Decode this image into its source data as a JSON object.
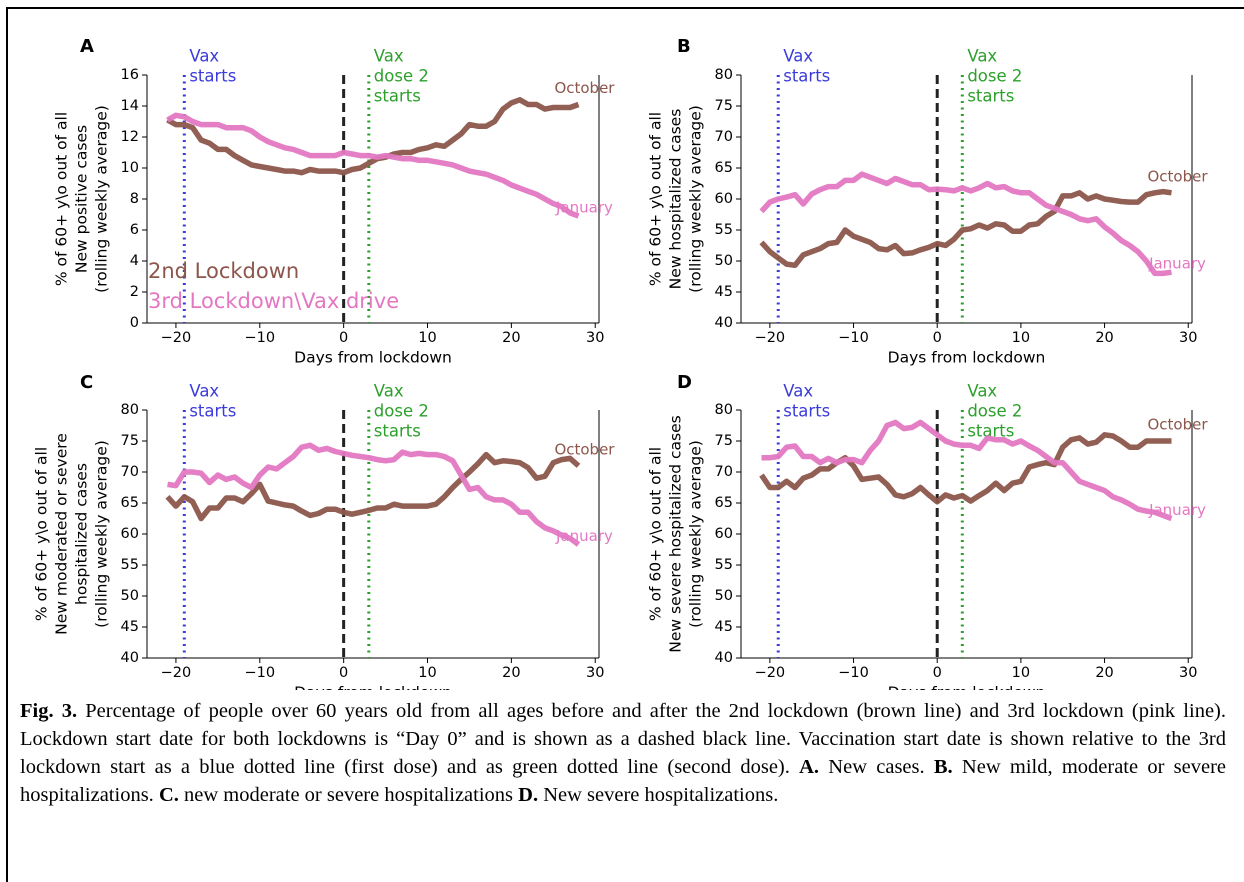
{
  "chart_data": [
    {
      "type": "line",
      "panel_label": "A",
      "xlabel": "Days from lockdown",
      "ylabel": [
        "% of 60+ y\\o out of all",
        "New positive cases",
        "(rolling weekly average)"
      ],
      "x": [
        -21,
        -20,
        -19,
        -18,
        -17,
        -16,
        -15,
        -14,
        -13,
        -12,
        -11,
        -10,
        -9,
        -8,
        -7,
        -6,
        -5,
        -4,
        -3,
        -2,
        -1,
        0,
        1,
        2,
        3,
        4,
        5,
        6,
        7,
        8,
        9,
        10,
        11,
        12,
        13,
        14,
        15,
        16,
        17,
        18,
        19,
        20,
        21,
        22,
        23,
        24,
        25,
        26,
        27,
        28
      ],
      "xlim": [
        -23.45,
        30.45
      ],
      "xticks": [
        {
          "value": -20,
          "label": "−20"
        },
        {
          "value": -10,
          "label": "−10"
        },
        0,
        10,
        20,
        30
      ],
      "ylim": [
        0,
        16
      ],
      "yticks": [
        0,
        2,
        4,
        6,
        8,
        10,
        12,
        14,
        16
      ],
      "series": [
        {
          "name": "2nd Lockdown",
          "end_label": "October",
          "color": "#8c564b",
          "values": [
            13.1,
            12.8,
            12.8,
            12.6,
            11.8,
            11.6,
            11.2,
            11.2,
            10.8,
            10.5,
            10.2,
            10.1,
            10.0,
            9.9,
            9.8,
            9.8,
            9.7,
            9.9,
            9.8,
            9.8,
            9.8,
            9.7,
            9.9,
            10.0,
            10.3,
            10.6,
            10.7,
            10.9,
            11.0,
            11.0,
            11.2,
            11.3,
            11.5,
            11.4,
            11.8,
            12.2,
            12.8,
            12.7,
            12.7,
            13.0,
            13.8,
            14.2,
            14.4,
            14.1,
            14.1,
            13.8,
            13.9,
            13.9,
            13.9,
            14.1
          ]
        },
        {
          "name": "3rd Lockdown\\Vax drive",
          "end_label": "January",
          "color": "#e377c2",
          "values": [
            13.1,
            13.4,
            13.3,
            13.0,
            12.8,
            12.8,
            12.8,
            12.6,
            12.6,
            12.6,
            12.4,
            12.0,
            11.7,
            11.5,
            11.3,
            11.2,
            11.0,
            10.8,
            10.8,
            10.8,
            10.8,
            11.0,
            10.9,
            10.8,
            10.8,
            10.7,
            10.8,
            10.7,
            10.6,
            10.6,
            10.5,
            10.5,
            10.4,
            10.3,
            10.2,
            10.0,
            9.8,
            9.7,
            9.6,
            9.4,
            9.2,
            8.9,
            8.7,
            8.5,
            8.3,
            8.0,
            7.7,
            7.5,
            7.1,
            6.9
          ]
        }
      ],
      "legend": "lower left",
      "vlines": [
        {
          "x": -19,
          "color": "#3b3bdb",
          "style": "dotted",
          "label": [
            "Vax",
            "starts"
          ]
        },
        {
          "x": 0,
          "color": "#222222",
          "style": "dashed"
        },
        {
          "x": 3,
          "color": "#2ca02c",
          "style": "dotted",
          "label": [
            "Vax",
            "dose 2",
            "starts"
          ]
        }
      ]
    },
    {
      "type": "line",
      "panel_label": "B",
      "xlabel": "Days from lockdown",
      "ylabel": [
        "% of 60+ y\\o out of all",
        "New hospitalized cases",
        "(rolling weekly average)"
      ],
      "x": [
        -21,
        -20,
        -19,
        -18,
        -17,
        -16,
        -15,
        -14,
        -13,
        -12,
        -11,
        -10,
        -9,
        -8,
        -7,
        -6,
        -5,
        -4,
        -3,
        -2,
        -1,
        0,
        1,
        2,
        3,
        4,
        5,
        6,
        7,
        8,
        9,
        10,
        11,
        12,
        13,
        14,
        15,
        16,
        17,
        18,
        19,
        20,
        21,
        22,
        23,
        24,
        25,
        26,
        27,
        28
      ],
      "xlim": [
        -23.45,
        30.45
      ],
      "xticks": [
        {
          "value": -20,
          "label": "−20"
        },
        {
          "value": -10,
          "label": "−10"
        },
        0,
        10,
        20,
        30
      ],
      "ylim": [
        40,
        80
      ],
      "yticks": [
        40,
        45,
        50,
        55,
        60,
        65,
        70,
        75,
        80
      ],
      "series": [
        {
          "end_label": "October",
          "color": "#8c564b",
          "values": [
            53,
            51.5,
            50.5,
            49.5,
            49.3,
            51,
            51.5,
            52,
            52.8,
            53,
            55,
            54,
            53.5,
            53,
            52,
            51.8,
            52.5,
            51.2,
            51.3,
            51.8,
            52.2,
            52.8,
            52.5,
            53.5,
            55,
            55.2,
            55.8,
            55.3,
            56,
            55.8,
            54.8,
            54.8,
            55.8,
            56,
            57.2,
            58,
            60.5,
            60.5,
            61,
            60,
            60.5,
            60,
            59.8,
            59.6,
            59.5,
            59.5,
            60.7,
            61,
            61.2,
            61
          ]
        },
        {
          "end_label": "January",
          "color": "#e377c2",
          "values": [
            58,
            59.5,
            60,
            60.3,
            60.7,
            59.2,
            60.8,
            61.5,
            62,
            62,
            63,
            63,
            64,
            63.5,
            63,
            62.5,
            63.3,
            62.8,
            62.3,
            62.3,
            61.5,
            61.6,
            61.5,
            61.3,
            61.8,
            61.3,
            61.8,
            62.5,
            61.8,
            62,
            61.3,
            61,
            61,
            60,
            59,
            58.5,
            58,
            57.5,
            56.8,
            56.5,
            56.8,
            55.5,
            54.5,
            53.3,
            52.5,
            51.5,
            50,
            48,
            48,
            48.2
          ]
        }
      ],
      "vlines": [
        {
          "x": -19,
          "color": "#3b3bdb",
          "style": "dotted",
          "label": [
            "Vax",
            "starts"
          ]
        },
        {
          "x": 0,
          "color": "#222222",
          "style": "dashed"
        },
        {
          "x": 3,
          "color": "#2ca02c",
          "style": "dotted",
          "label": [
            "Vax",
            "dose 2",
            "starts"
          ]
        }
      ]
    },
    {
      "type": "line",
      "panel_label": "C",
      "xlabel": "Days from lockdown",
      "ylabel": [
        "% of 60+ y\\o out of all",
        "New moderated or severe",
        "hospitalized cases",
        "(rolling weekly average)"
      ],
      "x": [
        -21,
        -20,
        -19,
        -18,
        -17,
        -16,
        -15,
        -14,
        -13,
        -12,
        -11,
        -10,
        -9,
        -8,
        -7,
        -6,
        -5,
        -4,
        -3,
        -2,
        -1,
        0,
        1,
        2,
        3,
        4,
        5,
        6,
        7,
        8,
        9,
        10,
        11,
        12,
        13,
        14,
        15,
        16,
        17,
        18,
        19,
        20,
        21,
        22,
        23,
        24,
        25,
        26,
        27,
        28
      ],
      "xlim": [
        -23.45,
        30.45
      ],
      "xticks": [
        {
          "value": -20,
          "label": "−20"
        },
        {
          "value": -10,
          "label": "−10"
        },
        0,
        10,
        20,
        30
      ],
      "ylim": [
        40,
        80
      ],
      "yticks": [
        40,
        45,
        50,
        55,
        60,
        65,
        70,
        75,
        80
      ],
      "series": [
        {
          "end_label": "October",
          "color": "#8c564b",
          "values": [
            66,
            64.5,
            66,
            65.2,
            62.5,
            64.2,
            64.2,
            65.8,
            65.8,
            65.2,
            66.5,
            68,
            65.3,
            65,
            64.7,
            64.5,
            63.7,
            63,
            63.3,
            64,
            64,
            63.5,
            63.2,
            63.5,
            63.8,
            64.2,
            64.2,
            64.8,
            64.5,
            64.5,
            64.5,
            64.5,
            64.8,
            66,
            67.5,
            68.8,
            70,
            71.3,
            72.8,
            71.5,
            71.8,
            71.7,
            71.5,
            70.7,
            69,
            69.3,
            71.5,
            72,
            72.2,
            71
          ]
        },
        {
          "end_label": "January",
          "color": "#e377c2",
          "values": [
            68,
            67.8,
            70,
            70,
            69.8,
            68.3,
            69.5,
            68.8,
            69.2,
            68.2,
            67.5,
            69.5,
            70.8,
            70.5,
            71.5,
            72.5,
            74,
            74.3,
            73.5,
            73.8,
            73.3,
            73,
            72.7,
            72.5,
            72.3,
            72,
            71.8,
            72,
            73.2,
            72.8,
            73,
            72.8,
            72.8,
            72.5,
            71.8,
            69.5,
            67.2,
            67.5,
            66,
            65.5,
            65.5,
            64.8,
            63.5,
            63.5,
            62,
            61,
            60.5,
            59.8,
            59.3,
            58.3
          ]
        }
      ],
      "vlines": [
        {
          "x": -19,
          "color": "#3b3bdb",
          "style": "dotted",
          "label": [
            "Vax",
            "starts"
          ]
        },
        {
          "x": 0,
          "color": "#222222",
          "style": "dashed"
        },
        {
          "x": 3,
          "color": "#2ca02c",
          "style": "dotted",
          "label": [
            "Vax",
            "dose 2",
            "starts"
          ]
        }
      ]
    },
    {
      "type": "line",
      "panel_label": "D",
      "xlabel": "Days from lockdown",
      "ylabel": [
        "% of 60+ y\\o out of all",
        "New severe hospitalized cases",
        "(rolling weekly average)"
      ],
      "x": [
        -21,
        -20,
        -19,
        -18,
        -17,
        -16,
        -15,
        -14,
        -13,
        -12,
        -11,
        -10,
        -9,
        -8,
        -7,
        -6,
        -5,
        -4,
        -3,
        -2,
        -1,
        0,
        1,
        2,
        3,
        4,
        5,
        6,
        7,
        8,
        9,
        10,
        11,
        12,
        13,
        14,
        15,
        16,
        17,
        18,
        19,
        20,
        21,
        22,
        23,
        24,
        25,
        26,
        27,
        28
      ],
      "xlim": [
        -23.45,
        30.45
      ],
      "xticks": [
        {
          "value": -20,
          "label": "−20"
        },
        {
          "value": -10,
          "label": "−10"
        },
        0,
        10,
        20,
        30
      ],
      "ylim": [
        40,
        80
      ],
      "yticks": [
        40,
        45,
        50,
        55,
        60,
        65,
        70,
        75,
        80
      ],
      "series": [
        {
          "end_label": "October",
          "color": "#8c564b",
          "values": [
            69.5,
            67.5,
            67.5,
            68.5,
            67.5,
            69,
            69.5,
            70.5,
            70.5,
            71.5,
            72.3,
            71,
            68.8,
            69,
            69.2,
            68,
            66.3,
            66,
            66.5,
            67.5,
            66.3,
            65.2,
            66.3,
            65.8,
            66.2,
            65.3,
            66.2,
            67,
            68.2,
            67,
            68.2,
            68.5,
            70.8,
            71.2,
            71.5,
            71.2,
            74,
            75.2,
            75.5,
            74.5,
            74.8,
            76,
            75.8,
            75,
            74,
            74,
            75,
            75,
            75,
            75
          ]
        },
        {
          "end_label": "January",
          "color": "#e377c2",
          "values": [
            72.3,
            72.3,
            72.5,
            74,
            74.2,
            72.5,
            72.5,
            71.5,
            72.2,
            71.5,
            72,
            72,
            71.5,
            73.5,
            75,
            77.5,
            78,
            77,
            77.2,
            78,
            77,
            76,
            75,
            74.5,
            74.3,
            74.3,
            73.8,
            75.5,
            75.2,
            75.2,
            74.5,
            75,
            74.2,
            73.5,
            72.5,
            71.5,
            71.5,
            70,
            68.5,
            68,
            67.5,
            67,
            66,
            65.5,
            64.8,
            64,
            63.7,
            63.5,
            63,
            62.5
          ]
        }
      ],
      "vlines": [
        {
          "x": -19,
          "color": "#3b3bdb",
          "style": "dotted",
          "label": [
            "Vax",
            "starts"
          ]
        },
        {
          "x": 0,
          "color": "#222222",
          "style": "dashed"
        },
        {
          "x": 3,
          "color": "#2ca02c",
          "style": "dotted",
          "label": [
            "Vax",
            "dose 2",
            "starts"
          ]
        }
      ]
    }
  ],
  "caption": [
    {
      "text": "Fig. 3.",
      "bold": true
    },
    {
      "text": " Percentage of people over 60 years old from all ages before and after the 2nd lockdown (brown line) and 3rd lockdown (pink line). Lockdown start date for both lockdowns is “Day 0” and is shown as a dashed black line. Vaccination start date is shown relative to the 3rd lockdown start as a blue dotted line (first dose) and as green dotted line (second dose). "
    },
    {
      "text": "A.",
      "bold": true
    },
    {
      "text": " New cases. "
    },
    {
      "text": "B.",
      "bold": true
    },
    {
      "text": " New mild, moderate or severe hospitalizations. "
    },
    {
      "text": "C.",
      "bold": true
    },
    {
      "text": " new moderate or severe hospitalizations "
    },
    {
      "text": "D.",
      "bold": true
    },
    {
      "text": " New severe hospitalizations."
    }
  ]
}
